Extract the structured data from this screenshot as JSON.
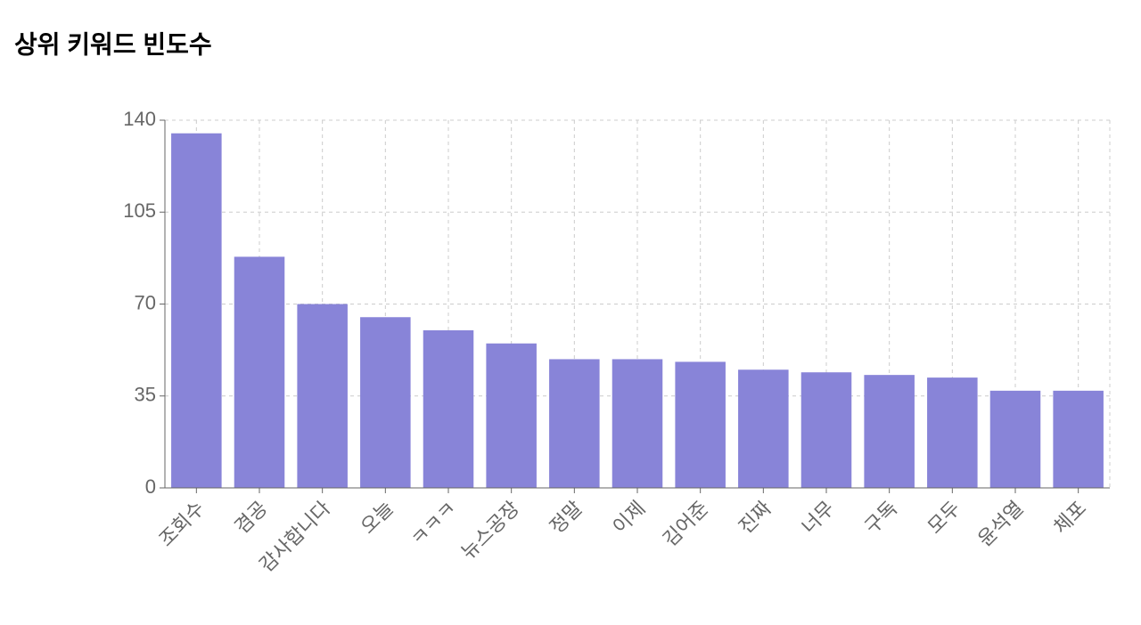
{
  "chart_data": {
    "type": "bar",
    "title": "상위 키워드 빈도수",
    "categories": [
      "조회수",
      "겸공",
      "감사합니다",
      "오늘",
      "ㅋㅋㅋ",
      "뉴스공장",
      "정말",
      "이제",
      "김어준",
      "진짜",
      "너무",
      "구독",
      "모두",
      "윤석열",
      "체포"
    ],
    "values": [
      135,
      88,
      70,
      65,
      60,
      55,
      49,
      49,
      48,
      45,
      44,
      43,
      42,
      37,
      37
    ],
    "color": "#8884d8",
    "ylim": [
      0,
      140
    ],
    "yticks": [
      0,
      35,
      70,
      105,
      140
    ],
    "grid": true
  }
}
